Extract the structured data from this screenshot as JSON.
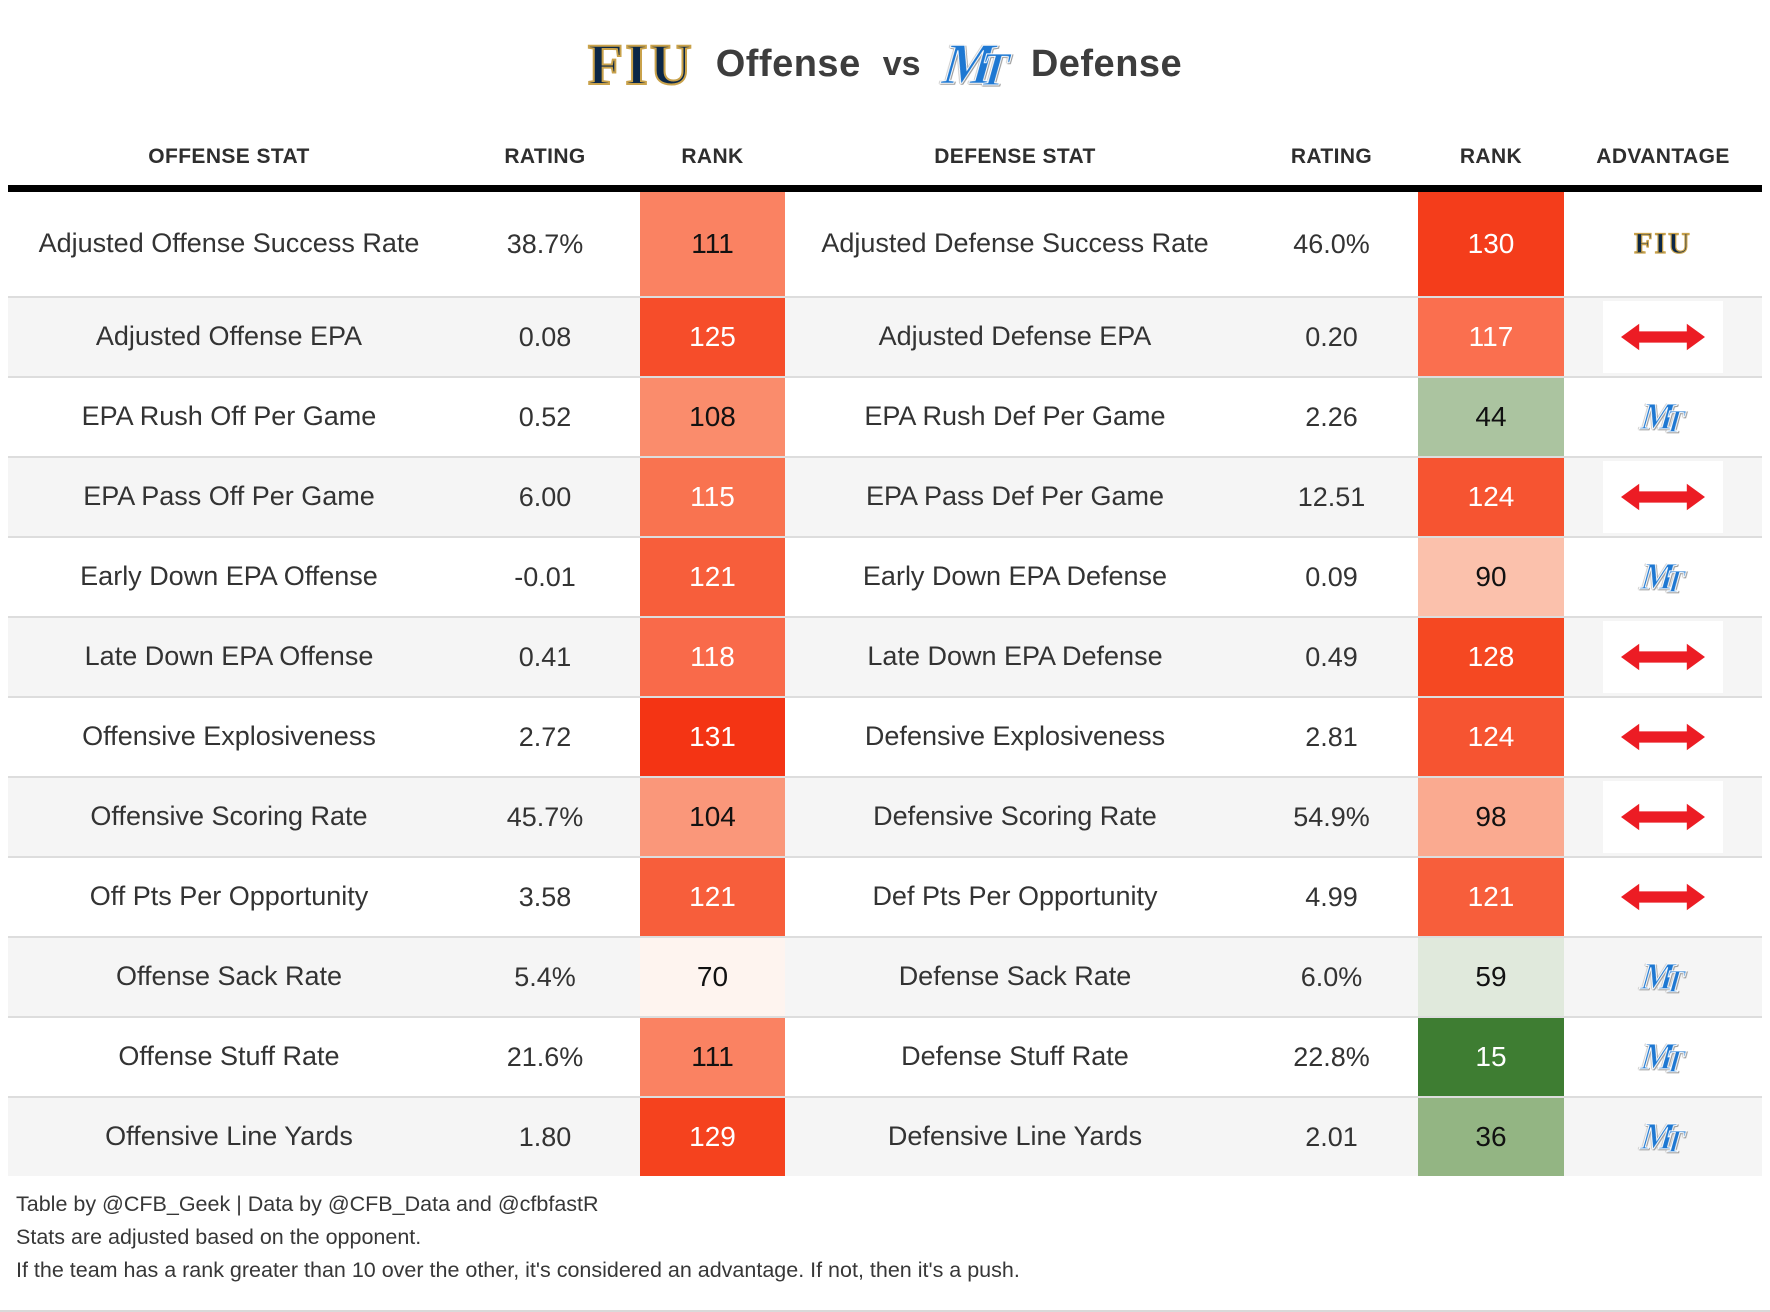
{
  "title": {
    "team1_logo": "FIU",
    "part1": "Offense",
    "vs": "vs",
    "team2_logo_m": "M",
    "team2_logo_t": "T",
    "part2": "Defense"
  },
  "logos": {
    "fiu": "FIU",
    "mt_m": "M",
    "mt_t": "T"
  },
  "chart_data": {
    "type": "table",
    "title": "FIU Offense vs MT Defense",
    "columns": [
      "OFFENSE STAT",
      "RATING",
      "RANK",
      "DEFENSE STAT",
      "RATING",
      "RANK",
      "ADVANTAGE"
    ],
    "rank_color_scale": "green (good rank) to white to red (bad rank), ranks out of 131",
    "rows": [
      {
        "offense_stat": "Adjusted Offense Success Rate",
        "off_rating": "38.7%",
        "off_rank": "111",
        "off_rank_bg": "#FA8262",
        "off_rank_text": "#111111",
        "defense_stat": "Adjusted Defense Success Rate",
        "def_rating": "46.0%",
        "def_rank": "130",
        "def_rank_bg": "#F43D1B",
        "def_rank_text": "#FFFFFF",
        "advantage": "fiu"
      },
      {
        "offense_stat": "Adjusted Offense EPA",
        "off_rating": "0.08",
        "off_rank": "125",
        "off_rank_bg": "#F64D2A",
        "off_rank_text": "#FFFFFF",
        "defense_stat": "Adjusted Defense EPA",
        "def_rating": "0.20",
        "def_rank": "117",
        "def_rank_bg": "#FA6F4F",
        "def_rank_text": "#FFFFFF",
        "advantage": "push"
      },
      {
        "offense_stat": "EPA Rush Off Per Game",
        "off_rating": "0.52",
        "off_rank": "108",
        "off_rank_bg": "#FA8C6C",
        "off_rank_text": "#111111",
        "defense_stat": "EPA Rush Def Per Game",
        "def_rating": "2.26",
        "def_rank": "44",
        "def_rank_bg": "#ABC4A0",
        "def_rank_text": "#111111",
        "advantage": "mt"
      },
      {
        "offense_stat": "EPA Pass Off Per Game",
        "off_rating": "6.00",
        "off_rank": "115",
        "off_rank_bg": "#F97350",
        "off_rank_text": "#FFFFFF",
        "defense_stat": "EPA Pass Def Per Game",
        "def_rating": "12.51",
        "def_rank": "124",
        "def_rank_bg": "#F65431",
        "def_rank_text": "#FFFFFF",
        "advantage": "push"
      },
      {
        "offense_stat": "Early Down EPA Offense",
        "off_rating": "-0.01",
        "off_rank": "121",
        "off_rank_bg": "#F75E3B",
        "off_rank_text": "#FFFFFF",
        "defense_stat": "Early Down EPA Defense",
        "def_rating": "0.09",
        "def_rank": "90",
        "def_rank_bg": "#FBC1AC",
        "def_rank_text": "#111111",
        "advantage": "mt"
      },
      {
        "offense_stat": "Late Down EPA Offense",
        "off_rating": "0.41",
        "off_rank": "118",
        "off_rank_bg": "#F96A4A",
        "off_rank_text": "#FFFFFF",
        "defense_stat": "Late Down EPA Defense",
        "def_rating": "0.49",
        "def_rank": "128",
        "def_rank_bg": "#F54822",
        "def_rank_text": "#FFFFFF",
        "advantage": "push"
      },
      {
        "offense_stat": "Offensive Explosiveness",
        "off_rating": "2.72",
        "off_rank": "131",
        "off_rank_bg": "#F43414",
        "off_rank_text": "#FFFFFF",
        "defense_stat": "Defensive Explosiveness",
        "def_rating": "2.81",
        "def_rank": "124",
        "def_rank_bg": "#F65431",
        "def_rank_text": "#FFFFFF",
        "advantage": "push"
      },
      {
        "offense_stat": "Offensive Scoring Rate",
        "off_rating": "45.7%",
        "off_rank": "104",
        "off_rank_bg": "#FA977A",
        "off_rank_text": "#111111",
        "defense_stat": "Defensive Scoring Rate",
        "def_rating": "54.9%",
        "def_rank": "98",
        "def_rank_bg": "#FAAA90",
        "def_rank_text": "#111111",
        "advantage": "push"
      },
      {
        "offense_stat": "Off Pts Per Opportunity",
        "off_rating": "3.58",
        "off_rank": "121",
        "off_rank_bg": "#F75E3B",
        "off_rank_text": "#FFFFFF",
        "defense_stat": "Def Pts Per Opportunity",
        "def_rating": "4.99",
        "def_rank": "121",
        "def_rank_bg": "#F75E3B",
        "def_rank_text": "#FFFFFF",
        "advantage": "push"
      },
      {
        "offense_stat": "Offense Sack Rate",
        "off_rating": "5.4%",
        "off_rank": "70",
        "off_rank_bg": "#FEF4EF",
        "off_rank_text": "#111111",
        "defense_stat": "Defense Sack Rate",
        "def_rating": "6.0%",
        "def_rank": "59",
        "def_rank_bg": "#E0E9DC",
        "def_rank_text": "#111111",
        "advantage": "mt"
      },
      {
        "offense_stat": "Offense Stuff Rate",
        "off_rating": "21.6%",
        "off_rank": "111",
        "off_rank_bg": "#FA8262",
        "off_rank_text": "#111111",
        "defense_stat": "Defense Stuff Rate",
        "def_rating": "22.8%",
        "def_rank": "15",
        "def_rank_bg": "#3E7D32",
        "def_rank_text": "#FFFFFF",
        "advantage": "mt"
      },
      {
        "offense_stat": "Offensive Line Yards",
        "off_rating": "1.80",
        "off_rank": "129",
        "off_rank_bg": "#F5421E",
        "off_rank_text": "#FFFFFF",
        "defense_stat": "Defensive Line Yards",
        "def_rating": "2.01",
        "def_rank": "36",
        "def_rank_bg": "#93B583",
        "def_rank_text": "#111111",
        "advantage": "mt"
      }
    ]
  },
  "advantage_icons": {
    "fiu": "fiu-team-logo",
    "mt": "mt-team-logo",
    "push": "red-double-arrow-icon"
  },
  "colors": {
    "header_rule": "#000000",
    "row_alt_bg": "#F5F5F5",
    "divider": "#DDDDDD",
    "arrow_red": "#EC1C24",
    "fiu_navy": "#0B2747",
    "fiu_gold": "#C9A24B",
    "mt_blue": "#1E78D2"
  },
  "footer": {
    "line1": "Table by @CFB_Geek | Data by @CFB_Data and @cfbfastR",
    "line2": "Stats are adjusted based on the opponent.",
    "line3": "If the team has a rank greater than 10 over the other, it's considered an advantage. If not, then it's a push."
  }
}
